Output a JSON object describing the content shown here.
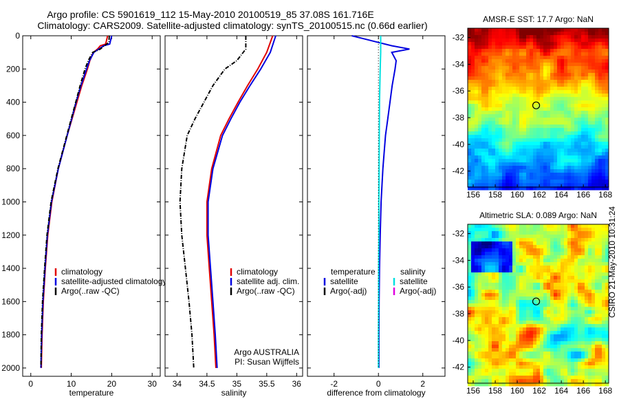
{
  "header": {
    "line1": "Argo profile: CS 5901619_112 15-May-2010 20100519_85 37.08S 161.716E",
    "line2": "Climatology: CARS2009. Satellite-adjusted climatology: synTS_20100515.nc (0.66d earlier)"
  },
  "side_label": "CSIRO 21-May-2010 10:31:24",
  "colors": {
    "climatology": "#e00000",
    "satellite": "#0000e0",
    "argo": "#000000",
    "sat_salinity": "#00e0e0",
    "argo_adj_salinity": "#e000e0"
  },
  "chart_data": [
    {
      "type": "line",
      "xlabel": "temperature",
      "ylabel": "",
      "xlim": [
        -2,
        32
      ],
      "ylim": [
        2050,
        0
      ],
      "xticks": [
        0,
        10,
        20,
        30
      ],
      "yticks": [
        0,
        200,
        400,
        600,
        800,
        1000,
        1200,
        1400,
        1600,
        1800,
        2000
      ],
      "legend": [
        "climatology",
        "satellite-adjusted climatology",
        "Argo(..raw -QC)"
      ],
      "series": [
        {
          "name": "climatology",
          "color": "#e00000",
          "dash": "",
          "depth": [
            0,
            50,
            60,
            80,
            100,
            150,
            200,
            300,
            400,
            500,
            600,
            800,
            1000,
            1200,
            1400,
            1600,
            1800,
            2000
          ],
          "values": [
            19.0,
            18.5,
            17.2,
            16.5,
            15.5,
            14.6,
            14.0,
            12.6,
            11.4,
            10.2,
            9.0,
            6.8,
            5.2,
            4.2,
            3.6,
            3.1,
            2.8,
            2.6
          ]
        },
        {
          "name": "satellite-adjusted climatology",
          "color": "#0000e0",
          "dash": "",
          "depth": [
            0,
            50,
            60,
            80,
            100,
            150,
            200,
            300,
            400,
            500,
            600,
            800,
            1000,
            1200,
            1400,
            1600,
            1800,
            2000
          ],
          "values": [
            20.0,
            19.5,
            18.0,
            16.8,
            15.6,
            14.5,
            13.8,
            12.4,
            11.2,
            10.1,
            9.0,
            6.8,
            5.1,
            4.1,
            3.5,
            3.0,
            2.7,
            2.5
          ]
        },
        {
          "name": "Argo(..raw -QC)",
          "color": "#000000",
          "dash": "6 2 1 2",
          "depth": [
            0,
            40,
            60,
            80,
            100,
            150,
            200,
            300,
            400,
            500,
            600,
            800,
            1000,
            1200,
            1400,
            1600,
            1800,
            2000
          ],
          "values": [
            19.4,
            19.3,
            18.2,
            17.2,
            15.3,
            14.2,
            13.4,
            12.2,
            11.1,
            10.0,
            8.9,
            6.7,
            5.0,
            4.0,
            3.4,
            2.9,
            2.6,
            2.5
          ]
        }
      ]
    },
    {
      "type": "line",
      "xlabel": "salinity",
      "ylabel": "",
      "xlim": [
        33.8,
        36.1
      ],
      "ylim": [
        2050,
        0
      ],
      "xticks": [
        34,
        34.5,
        35,
        35.5,
        36
      ],
      "legend": [
        "climatology",
        "satellite adj. clim.",
        "Argo(..raw -QC)"
      ],
      "annotation": [
        "Argo AUSTRALIA",
        "PI: Susan Wijffels"
      ],
      "series": [
        {
          "name": "climatology",
          "color": "#e00000",
          "dash": "",
          "depth": [
            0,
            100,
            200,
            300,
            400,
            500,
            600,
            800,
            1000,
            1200,
            1400,
            1600,
            1800,
            2000
          ],
          "values": [
            35.6,
            35.5,
            35.35,
            35.18,
            35.02,
            34.87,
            34.73,
            34.58,
            34.5,
            34.5,
            34.54,
            34.58,
            34.62,
            34.65
          ]
        },
        {
          "name": "satellite adj. clim.",
          "color": "#0000e0",
          "dash": "",
          "depth": [
            0,
            100,
            200,
            300,
            400,
            500,
            600,
            800,
            1000,
            1200,
            1400,
            1600,
            1800,
            2000
          ],
          "values": [
            35.65,
            35.56,
            35.4,
            35.22,
            35.05,
            34.9,
            34.76,
            34.6,
            34.52,
            34.52,
            34.56,
            34.6,
            34.64,
            34.67
          ]
        },
        {
          "name": "Argo(..raw -QC)",
          "color": "#000000",
          "dash": "6 2 1 2",
          "depth": [
            0,
            80,
            150,
            200,
            300,
            400,
            500,
            600,
            800,
            1000,
            1200,
            1400,
            1600,
            1800,
            2000
          ],
          "values": [
            35.15,
            35.15,
            35.0,
            34.8,
            34.6,
            34.45,
            34.3,
            34.17,
            34.08,
            34.05,
            34.08,
            34.14,
            34.2,
            34.25,
            34.28
          ]
        }
      ]
    },
    {
      "type": "line",
      "xlabel": "difference from climatology",
      "ylabel": "",
      "xlim": [
        -3.2,
        3.0
      ],
      "ylim": [
        2050,
        0
      ],
      "xticks": [
        -2,
        0,
        2
      ],
      "legend_groups": [
        {
          "title": "temperature",
          "items": [
            {
              "label": "satellite",
              "color": "#0000e0"
            },
            {
              "label": "Argo(-adj)",
              "color": "#000000"
            }
          ]
        },
        {
          "title": "salinity",
          "items": [
            {
              "label": "satellite",
              "color": "#00e0e0"
            },
            {
              "label": "Argo(-adj)",
              "color": "#e000e0"
            }
          ]
        }
      ],
      "series": [
        {
          "name": "temperature satellite",
          "color": "#0000e0",
          "dash": "",
          "depth": [
            0,
            20,
            40,
            60,
            80,
            100,
            150,
            200,
            300,
            400,
            500,
            600,
            800,
            1000,
            1200,
            1400,
            1600,
            1800,
            2000
          ],
          "values": [
            -1.2,
            -0.6,
            0.0,
            0.6,
            1.4,
            0.6,
            0.8,
            0.75,
            0.62,
            0.52,
            0.42,
            0.32,
            0.2,
            0.12,
            0.08,
            0.05,
            0.03,
            0.02,
            0.02
          ]
        },
        {
          "name": "salinity satellite",
          "color": "#00e0e0",
          "dash": "",
          "depth": [
            0,
            100,
            200,
            400,
            600,
            800,
            1000,
            1200,
            1400,
            1600,
            1800,
            2000
          ],
          "values": [
            0.1,
            0.1,
            0.08,
            0.05,
            0.04,
            0.03,
            0.02,
            0.02,
            0.01,
            0.01,
            0.0,
            0.0
          ]
        },
        {
          "name": "temperature Argo(-adj)",
          "color": "#000000",
          "dash": "1 3",
          "depth": [
            0,
            2000
          ],
          "values": [
            0,
            0
          ]
        }
      ]
    },
    {
      "type": "heatmap",
      "title": "AMSR-E SST: 17.7 Argo: NaN",
      "xlim": [
        155.5,
        168.3
      ],
      "ylim": [
        -43.2,
        -31.3
      ],
      "xticks": [
        156,
        158,
        160,
        162,
        164,
        166,
        168
      ],
      "yticks": [
        -32,
        -34,
        -36,
        -38,
        -40,
        -42
      ],
      "marker": {
        "lon": 161.716,
        "lat": -37.08
      },
      "map_kind": "sst"
    },
    {
      "type": "heatmap",
      "title": "Altimetric SLA: 0.089 Argo: NaN",
      "xlim": [
        155.5,
        168.3
      ],
      "ylim": [
        -43.2,
        -31.3
      ],
      "xticks": [
        156,
        158,
        160,
        162,
        164,
        166,
        168
      ],
      "yticks": [
        -32,
        -34,
        -36,
        -38,
        -40,
        -42
      ],
      "marker": {
        "lon": 161.716,
        "lat": -37.08
      },
      "map_kind": "sla"
    }
  ]
}
